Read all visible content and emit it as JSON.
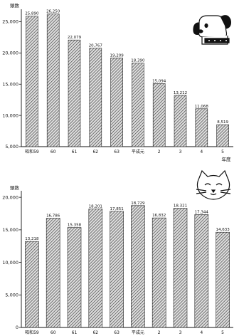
{
  "chart_data": [
    {
      "type": "bar",
      "ylabel": "頭数",
      "xlabel": "年度",
      "ylim": [
        5000,
        27000
      ],
      "yticks": [
        5000,
        10000,
        15000,
        20000,
        25000
      ],
      "ytick_labels": [
        "5,000",
        "10,000",
        "15,000",
        "20,000",
        "25,000"
      ],
      "categories": [
        "昭和59",
        "60",
        "61",
        "62",
        "63",
        "平成元",
        "2",
        "3",
        "4",
        "5"
      ],
      "values": [
        25890,
        26250,
        22079,
        20767,
        19209,
        18390,
        15094,
        13212,
        11068,
        8519
      ],
      "value_labels": [
        "25,890",
        "26,250",
        "22,079",
        "20,767",
        "19,209",
        "18,390",
        "15,094",
        "13,212",
        "11,068",
        "8,519"
      ],
      "illustration_icon": "dog-icon",
      "bar_fill": "#d9d9d9",
      "bar_hatch": "#3a3a3a"
    },
    {
      "type": "bar",
      "ylabel": "頭数",
      "ylim": [
        0,
        21000
      ],
      "yticks": [
        0,
        5000,
        10000,
        15000,
        20000
      ],
      "ytick_labels": [
        "0",
        "5,000",
        "10,000",
        "15,000",
        "20,000"
      ],
      "categories": [
        "昭和59",
        "60",
        "61",
        "62",
        "63",
        "平成元",
        "2",
        "3",
        "4",
        "5"
      ],
      "values": [
        13218,
        16786,
        15358,
        18201,
        17851,
        18729,
        16832,
        18321,
        17344,
        14633
      ],
      "value_labels": [
        "13,218",
        "16,786",
        "15,358",
        "18,201",
        "17,851",
        "18,729",
        "16,832",
        "18,321",
        "17,344",
        "14,633"
      ],
      "illustration_icon": "cat-icon",
      "bar_fill": "#d9d9d9",
      "bar_hatch": "#3a3a3a"
    }
  ]
}
